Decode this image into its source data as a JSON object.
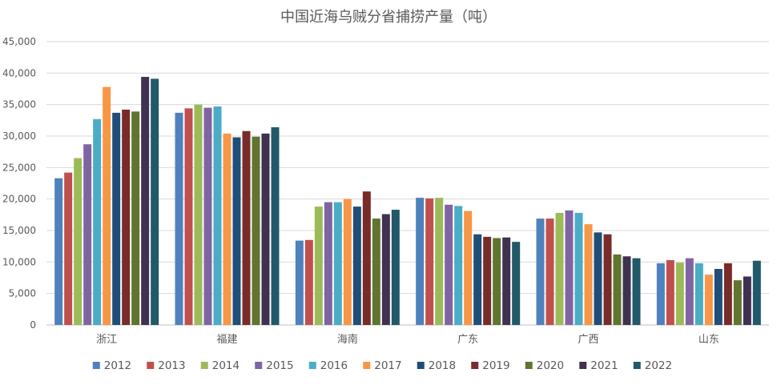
{
  "chart_data": {
    "type": "bar",
    "title": "中国近海乌贼分省捕捞产量（吨）",
    "xlabel": "",
    "ylabel": "",
    "categories": [
      "浙江",
      "福建",
      "海南",
      "广东",
      "广西",
      "山东"
    ],
    "ylim": [
      0,
      45000
    ],
    "yticks": [
      0,
      5000,
      10000,
      15000,
      20000,
      25000,
      30000,
      35000,
      40000,
      45000
    ],
    "ytick_labels": [
      "0",
      "5,000",
      "10,000",
      "15,000",
      "20,000",
      "25,000",
      "30,000",
      "35,000",
      "40,000",
      "45,000"
    ],
    "grid": true,
    "legend_position": "bottom",
    "series": [
      {
        "name": "2012",
        "color": "#4f81bd",
        "values": [
          23300,
          33700,
          13400,
          20200,
          16900,
          9800
        ]
      },
      {
        "name": "2013",
        "color": "#c0504d",
        "values": [
          24200,
          34400,
          13500,
          20100,
          16900,
          10300
        ]
      },
      {
        "name": "2014",
        "color": "#9bbb59",
        "values": [
          26500,
          35000,
          18800,
          20200,
          17800,
          9900
        ]
      },
      {
        "name": "2015",
        "color": "#8064a2",
        "values": [
          28700,
          34500,
          19500,
          19100,
          18200,
          10600
        ]
      },
      {
        "name": "2016",
        "color": "#4bacc6",
        "values": [
          32700,
          34700,
          19500,
          18900,
          17800,
          9800
        ]
      },
      {
        "name": "2017",
        "color": "#f79646",
        "values": [
          37800,
          30400,
          20000,
          18100,
          16000,
          8000
        ]
      },
      {
        "name": "2018",
        "color": "#1f4e79",
        "values": [
          33700,
          29800,
          18800,
          14400,
          14700,
          8900
        ]
      },
      {
        "name": "2019",
        "color": "#772c2a",
        "values": [
          34200,
          30800,
          21200,
          14000,
          14400,
          9800
        ]
      },
      {
        "name": "2020",
        "color": "#5f7530",
        "values": [
          33900,
          29900,
          16900,
          13800,
          11200,
          7100
        ]
      },
      {
        "name": "2021",
        "color": "#403151",
        "values": [
          39400,
          30400,
          17600,
          13900,
          10900,
          7700
        ]
      },
      {
        "name": "2022",
        "color": "#215968",
        "values": [
          39100,
          31400,
          18300,
          13200,
          10600,
          10200
        ]
      }
    ]
  }
}
